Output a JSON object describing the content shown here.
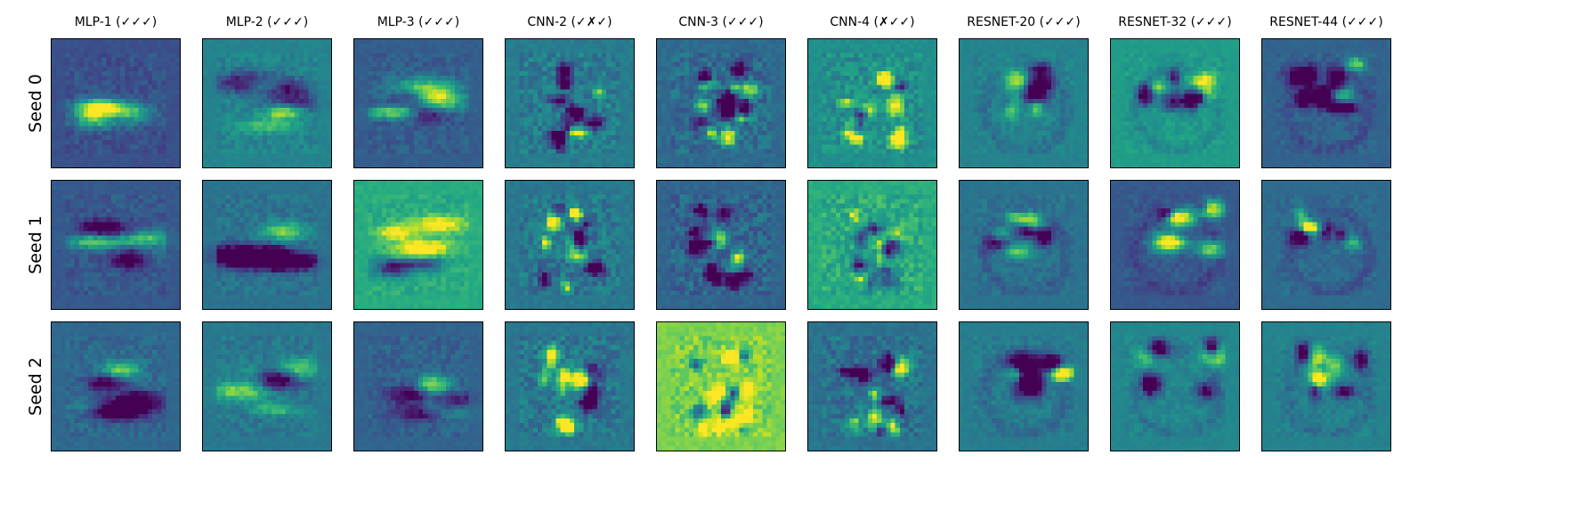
{
  "figure": {
    "columns": [
      {
        "title": "MLP-1 (✓✓✓)",
        "style": "mlp"
      },
      {
        "title": "MLP-2 (✓✓✓)",
        "style": "mlp"
      },
      {
        "title": "MLP-3 (✓✓✓)",
        "style": "mlp"
      },
      {
        "title": "CNN-2 (✓✗✓)",
        "style": "cnn"
      },
      {
        "title": "CNN-3 (✓✓✓)",
        "style": "cnn"
      },
      {
        "title": "CNN-4 (✗✓✓)",
        "style": "cnn"
      },
      {
        "title": "RESNET-20 (✓✓✓)",
        "style": "resnet"
      },
      {
        "title": "RESNET-32 (✓✓✓)",
        "style": "resnet"
      },
      {
        "title": "RESNET-44 (✓✓✓)",
        "style": "resnet"
      }
    ],
    "rows": [
      {
        "label": "Seed 0"
      },
      {
        "label": "Seed 1"
      },
      {
        "label": "Seed 2"
      }
    ],
    "panel_backgrounds": [
      [
        0.25,
        0.45,
        0.3,
        0.42,
        0.35,
        0.5,
        0.45,
        0.55,
        0.32
      ],
      [
        0.28,
        0.38,
        0.62,
        0.4,
        0.33,
        0.62,
        0.38,
        0.28,
        0.35
      ],
      [
        0.34,
        0.4,
        0.32,
        0.4,
        0.8,
        0.38,
        0.42,
        0.46,
        0.44
      ]
    ],
    "colormap": "viridis"
  }
}
